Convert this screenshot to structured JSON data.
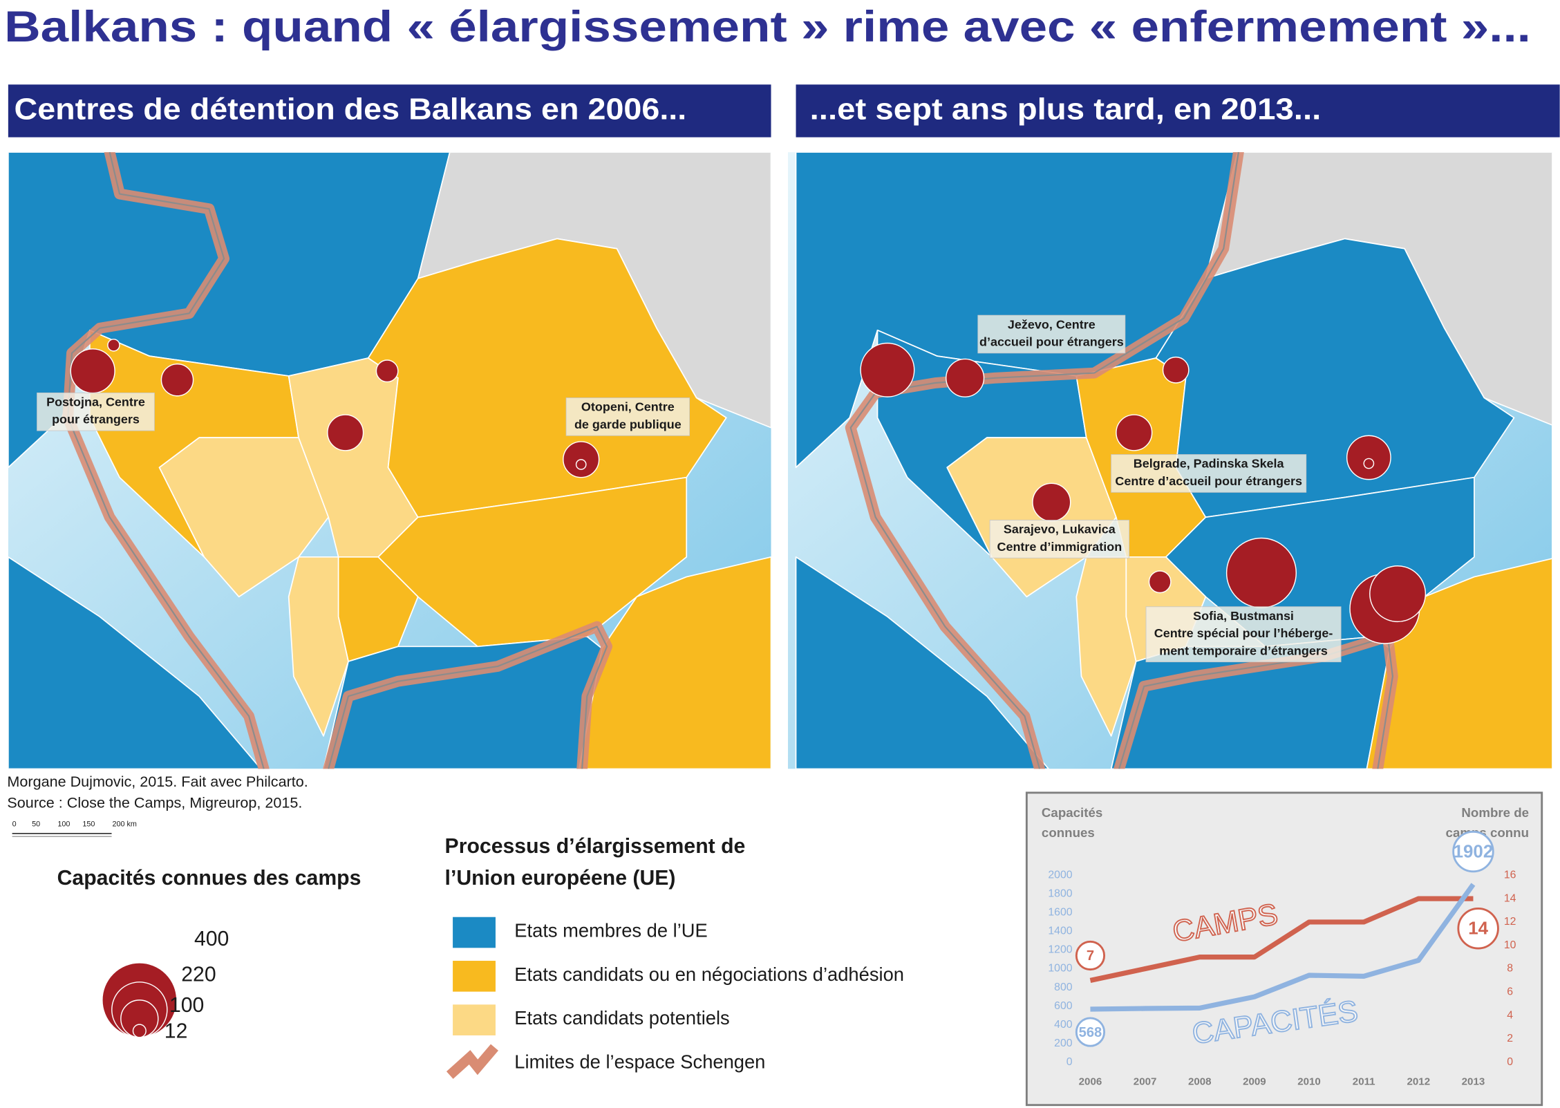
{
  "title": "Balkans : quand « élargissement » rime avec « enfermement »...",
  "maps": [
    {
      "heading": "Centres de détention des Balkans en 2006...",
      "camps": [
        {
          "capacity": 140,
          "label": [
            "Postojna, Centre",
            "pour étrangers"
          ]
        },
        {
          "capacity": 10
        },
        {
          "capacity": 73
        },
        {
          "capacity": 34
        },
        {
          "capacity": 92
        },
        {
          "capacity": 92,
          "label": [
            "Otopeni, Centre",
            "de garde publique"
          ]
        },
        {
          "capacity": 7
        }
      ]
    },
    {
      "heading": "...et sept ans plus tard, en 2013...",
      "camps": [
        {
          "capacity": 207
        },
        {
          "capacity": 103
        },
        {
          "capacity": 48,
          "label": [
            "Ježevo, Centre",
            "d’accueil pour étrangers"
          ]
        },
        {
          "capacity": 92,
          "label": [
            "Belgrade, Padinska Skela",
            "Centre d’accueil pour étrangers"
          ]
        },
        {
          "capacity": 103,
          "label": [
            "Sarajevo, Lukavica",
            "Centre d’immigration"
          ]
        },
        {
          "capacity": 138
        },
        {
          "capacity": 7
        },
        {
          "capacity": 34
        },
        {
          "capacity": 348,
          "label": [
            "Sofia, Bustmansi",
            "Centre spécial pour l’héberge-",
            "ment temporaire d’étrangers"
          ]
        },
        {
          "capacity": 348
        },
        {
          "capacity": 223
        }
      ]
    }
  ],
  "credits": [
    "Morgane Dujmovic, 2015. Fait avec Philcarto.",
    "Source : Close the Camps, Migreurop, 2015."
  ],
  "scale_bar": [
    "0",
    "50",
    "100",
    "150",
    "200 km"
  ],
  "size_legend": {
    "title": "Capacités connues des camps",
    "values": [
      400,
      220,
      100,
      12
    ],
    "color": "#a51d24"
  },
  "color_legend": {
    "title": [
      "Processus d’élargissement de",
      "l’Union européene (UE)"
    ],
    "items": [
      {
        "label": "Etats membres de l’UE",
        "color": "#1b8ac4"
      },
      {
        "label": "Etats candidats ou en négociations d’adhésion",
        "color": "#f8ba1f"
      },
      {
        "label": "Etats candidats potentiels",
        "color": "#fcd985"
      },
      {
        "label": "Limites de l’espace Schengen",
        "color": "#d98c73"
      }
    ]
  },
  "chart_data": {
    "type": "line",
    "x": [
      2006,
      2007,
      2008,
      2009,
      2010,
      2011,
      2012,
      2013
    ],
    "y_label": [
      "Capacités",
      "connues"
    ],
    "y2_label": [
      "Nombre de",
      "camps connu"
    ],
    "ylim": [
      0,
      2000
    ],
    "yticks": [
      0,
      200,
      400,
      600,
      800,
      1000,
      1200,
      1400,
      1600,
      1800,
      2000
    ],
    "y2lim": [
      0,
      16
    ],
    "y2ticks": [
      0,
      2,
      4,
      6,
      8,
      10,
      12,
      14,
      16
    ],
    "series": [
      {
        "name": "CAMPS",
        "color": "#d0624e",
        "axis": "y2",
        "values": [
          7,
          8,
          9,
          9,
          12,
          12,
          14,
          14
        ]
      },
      {
        "name": "CAPACITÉS",
        "color": "#8fb3e0",
        "values": [
          568,
          575,
          580,
          700,
          930,
          920,
          1090,
          1902
        ]
      }
    ]
  }
}
